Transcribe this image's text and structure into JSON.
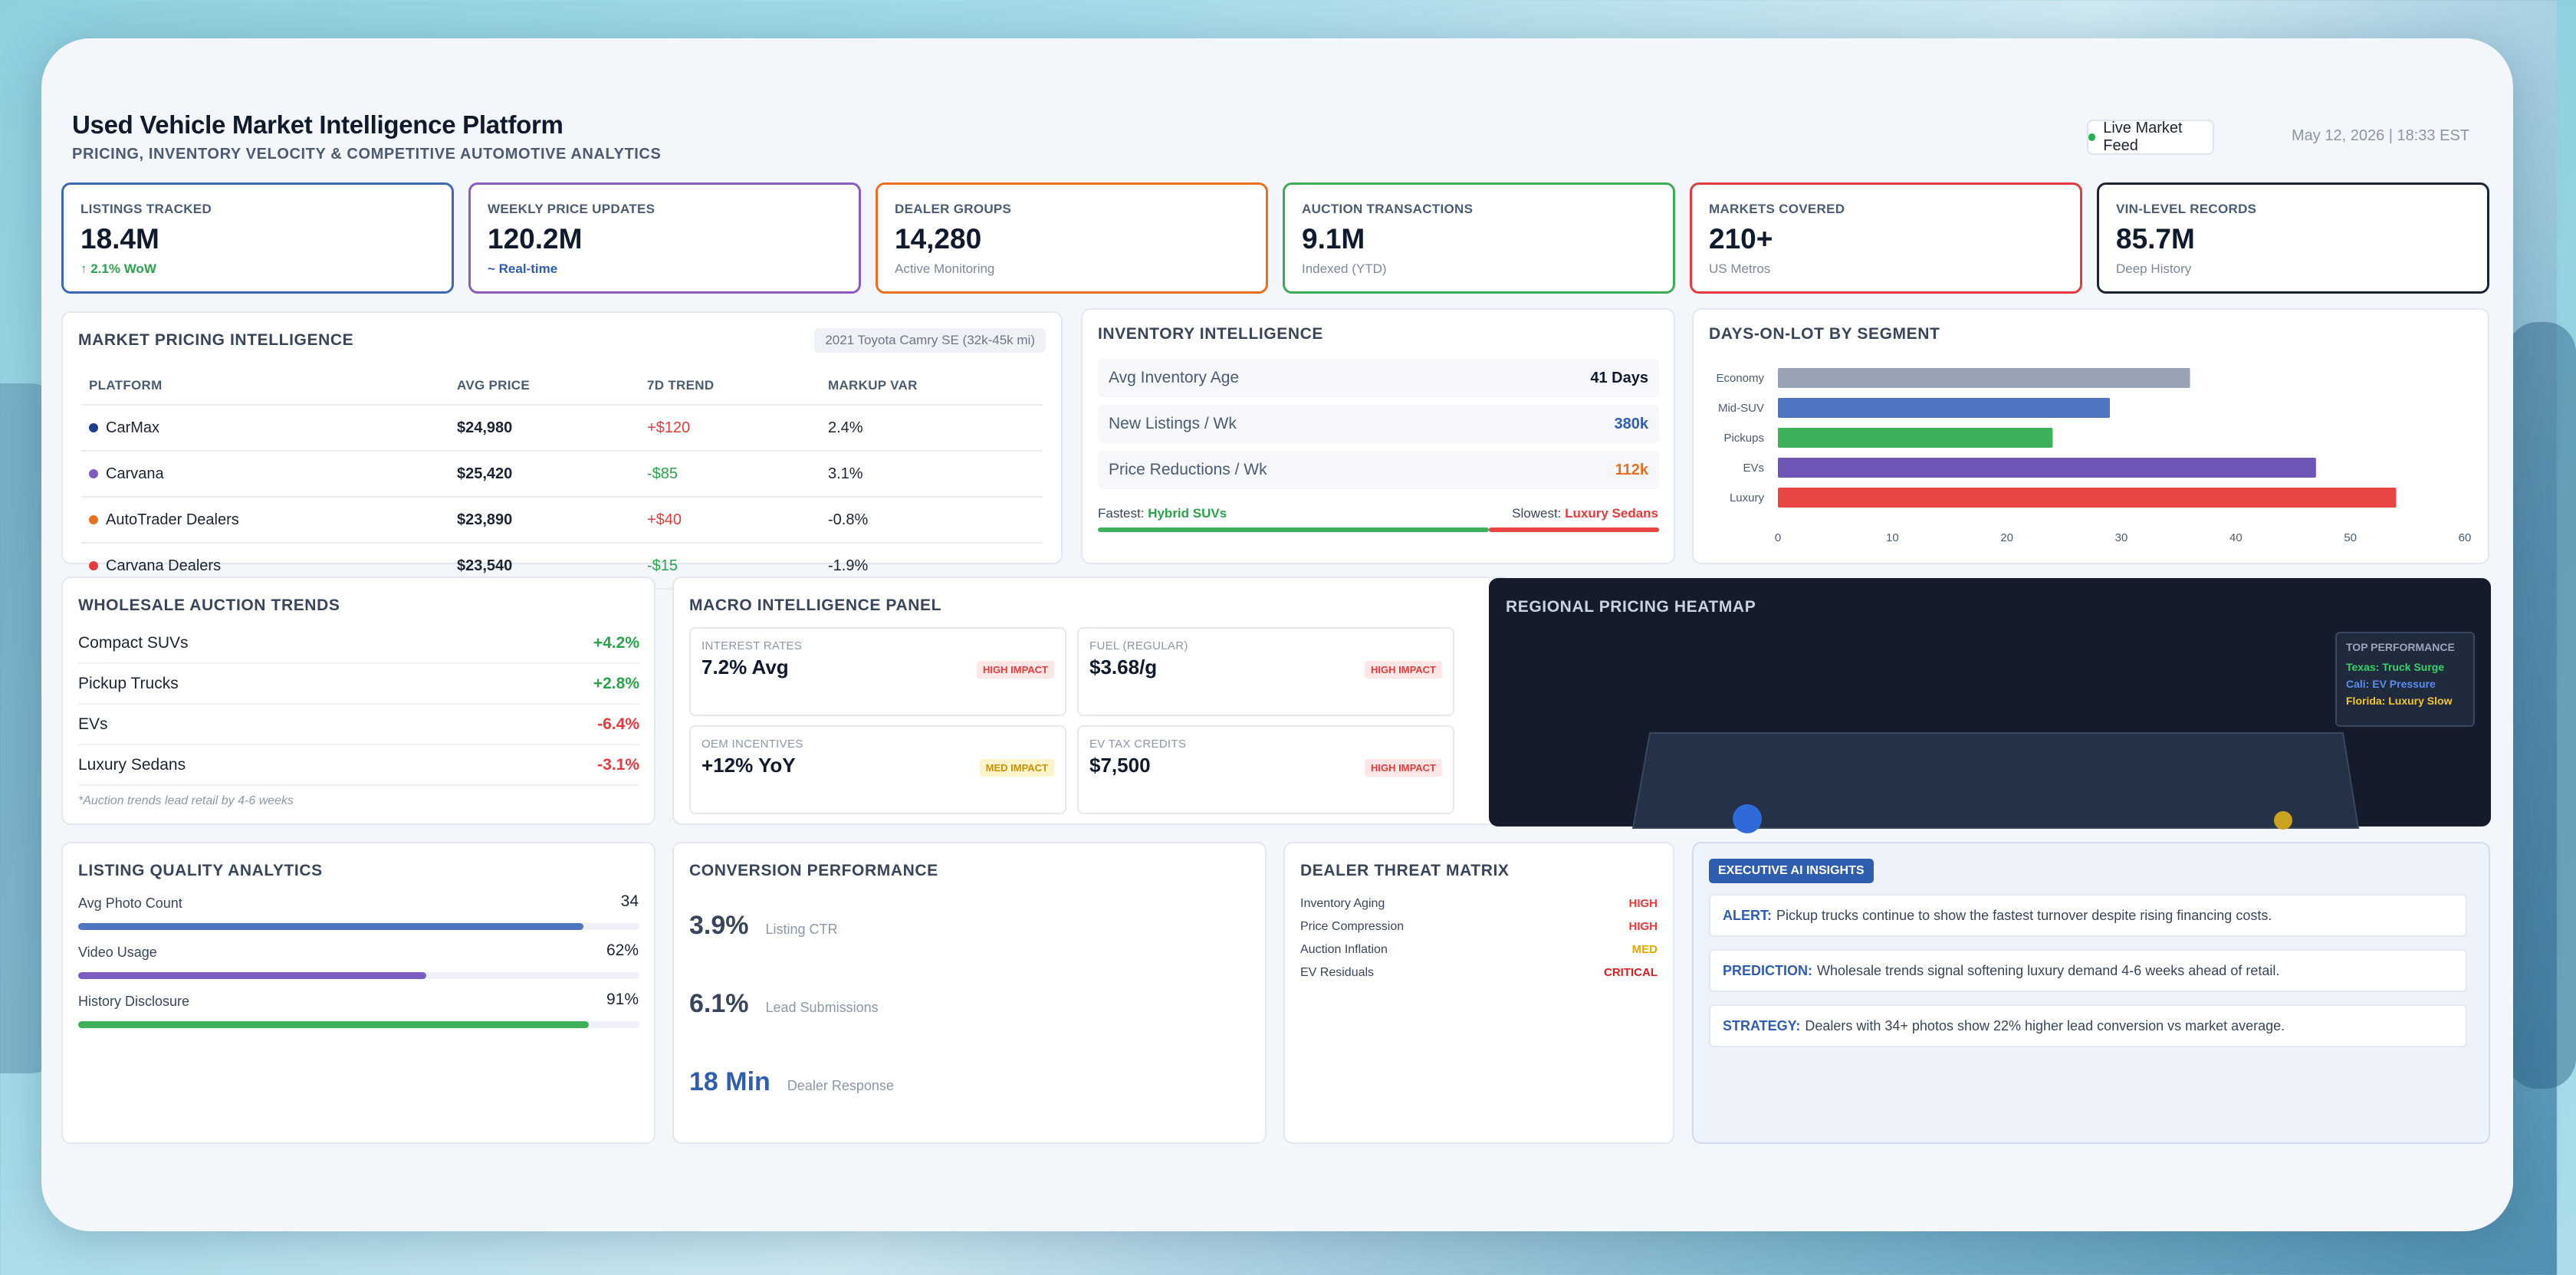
{
  "header": {
    "title": "Used Vehicle Market Intelligence Platform",
    "subtitle": "PRICING, INVENTORY VELOCITY & COMPETITIVE AUTOMOTIVE ANALYTICS",
    "live_label": "Live Market Feed",
    "timestamp": "May 12, 2026 | 18:33 EST"
  },
  "kpis": [
    {
      "label": "LISTINGS TRACKED",
      "value": "18.4M",
      "sub": "↑ 2.1% WoW",
      "border": "#3c68b5",
      "sub_color": "#2aa34a"
    },
    {
      "label": "WEEKLY PRICE UPDATES",
      "value": "120.2M",
      "sub": "~ Real-time",
      "border": "#8a5cc2",
      "sub_color": "#2f5db0"
    },
    {
      "label": "DEALER GROUPS",
      "value": "14,280",
      "sub": "Active Monitoring",
      "border": "#e8711f",
      "sub_color": "#7d8898"
    },
    {
      "label": "AUCTION TRANSACTIONS",
      "value": "9.1M",
      "sub": "Indexed (YTD)",
      "border": "#3bae55",
      "sub_color": "#7d8898"
    },
    {
      "label": "MARKETS COVERED",
      "value": "210+",
      "sub": "US Metros",
      "border": "#e23c3c",
      "sub_color": "#7d8898"
    },
    {
      "label": "VIN-LEVEL RECORDS",
      "value": "85.7M",
      "sub": "Deep History",
      "border": "#1b2433",
      "sub_color": "#7d8898"
    }
  ],
  "pricing": {
    "title": "MARKET PRICING INTELLIGENCE",
    "tag": "2021 Toyota Camry SE (32k-45k mi)",
    "headers": [
      "PLATFORM",
      "AVG PRICE",
      "7D TREND",
      "MARKUP VAR"
    ],
    "rows": [
      {
        "platform": "CarMax",
        "dot": "#1e3f8a",
        "price": "$24,980",
        "trend": "+$120",
        "trend_color": "#e23c3c",
        "markup": "2.4%"
      },
      {
        "platform": "Carvana",
        "dot": "#7d5bc0",
        "price": "$25,420",
        "trend": "-$85",
        "trend_color": "#2aa34a",
        "markup": "3.1%"
      },
      {
        "platform": "AutoTrader Dealers",
        "dot": "#e8711f",
        "price": "$23,890",
        "trend": "+$40",
        "trend_color": "#e23c3c",
        "markup": "-0.8%"
      },
      {
        "platform": "Carvana Dealers",
        "dot": "#e23c3c",
        "price": "$23,540",
        "trend": "-$15",
        "trend_color": "#2aa34a",
        "markup": "-1.9%"
      }
    ]
  },
  "inventory": {
    "title": "INVENTORY INTELLIGENCE",
    "rows": [
      {
        "label": "Avg Inventory Age",
        "value": "41 Days",
        "color": "#0f1b2d"
      },
      {
        "label": "New Listings / Wk",
        "value": "380k",
        "color": "#2f5db0"
      },
      {
        "label": "Price Reductions / Wk",
        "value": "112k",
        "color": "#e8711f"
      }
    ],
    "fastest_label": "Fastest:",
    "fastest_value": "Hybrid SUVs",
    "slowest_label": "Slowest:",
    "slowest_value": "Luxury Sedans"
  },
  "chart_data": {
    "type": "bar",
    "orientation": "horizontal",
    "title": "DAYS-ON-LOT BY SEGMENT",
    "categories": [
      "Economy",
      "Mid-SUV",
      "Pickups",
      "EVs",
      "Luxury"
    ],
    "values": [
      36,
      29,
      24,
      47,
      54
    ],
    "colors": [
      "#98a3b4",
      "#4e74c2",
      "#3fb05a",
      "#6f55b5",
      "#e84545"
    ],
    "xlim": [
      0,
      60
    ],
    "xticks": [
      0,
      10,
      20,
      30,
      40,
      50,
      60
    ],
    "grid": false
  },
  "wholesale": {
    "title": "WHOLESALE AUCTION TRENDS",
    "rows": [
      {
        "label": "Compact SUVs",
        "value": "+4.2%",
        "color": "#2aa34a"
      },
      {
        "label": "Pickup Trucks",
        "value": "+2.8%",
        "color": "#2aa34a"
      },
      {
        "label": "EVs",
        "value": "-6.4%",
        "color": "#e23c3c"
      },
      {
        "label": "Luxury Sedans",
        "value": "-3.1%",
        "color": "#e23c3c"
      }
    ],
    "note": "*Auction trends lead retail by 4-6 weeks"
  },
  "macro": {
    "title": "MACRO INTELLIGENCE PANEL",
    "items": [
      {
        "label": "INTEREST RATES",
        "value": "7.2% Avg",
        "badge": "HIGH IMPACT",
        "level": "high"
      },
      {
        "label": "FUEL (REGULAR)",
        "value": "$3.68/g",
        "badge": "HIGH IMPACT",
        "level": "high"
      },
      {
        "label": "OEM INCENTIVES",
        "value": "+12% YoY",
        "badge": "MED IMPACT",
        "level": "med"
      },
      {
        "label": "EV TAX CREDITS",
        "value": "$7,500",
        "badge": "HIGH IMPACT",
        "level": "high"
      }
    ]
  },
  "heatmap": {
    "title": "REGIONAL PRICING HEATMAP",
    "legend_title": "TOP PERFORMANCE",
    "legend": [
      {
        "text": "Texas: Truck Surge",
        "color": "#3ad06a"
      },
      {
        "text": "Cali: EV Pressure",
        "color": "#5b8cf0"
      },
      {
        "text": "Florida: Luxury Slow",
        "color": "#f5c431"
      }
    ]
  },
  "listing_quality": {
    "title": "LISTING QUALITY ANALYTICS",
    "rows": [
      {
        "label": "Avg Photo Count",
        "value": "34",
        "fill": 0.9,
        "color": "#4e74c2"
      },
      {
        "label": "Video Usage",
        "value": "62%",
        "fill": 0.62,
        "color": "#7a5cc2"
      },
      {
        "label": "History Disclosure",
        "value": "91%",
        "fill": 0.91,
        "color": "#3fb05a"
      }
    ]
  },
  "conversion": {
    "title": "CONVERSION PERFORMANCE",
    "rows": [
      {
        "value": "3.9%",
        "caption": "Listing CTR",
        "color": "#38455a"
      },
      {
        "value": "6.1%",
        "caption": "Lead Submissions",
        "color": "#38455a"
      },
      {
        "value": "18 Min",
        "caption": "Dealer Response",
        "color": "#2f5db0"
      }
    ]
  },
  "threat": {
    "title": "DEALER THREAT MATRIX",
    "rows": [
      {
        "label": "Inventory Aging",
        "level": "HIGH",
        "color": "#e23c3c"
      },
      {
        "label": "Price Compression",
        "level": "HIGH",
        "color": "#e23c3c"
      },
      {
        "label": "Auction Inflation",
        "level": "MED",
        "color": "#e0a800"
      },
      {
        "label": "EV Residuals",
        "level": "CRITICAL",
        "color": "#d91f1f"
      }
    ]
  },
  "insights": {
    "title": "EXECUTIVE AI INSIGHTS",
    "rows": [
      {
        "key": "ALERT:",
        "text": "Pickup trucks continue to show the fastest turnover despite rising financing costs."
      },
      {
        "key": "PREDICTION:",
        "text": "Wholesale trends signal softening luxury demand 4-6 weeks ahead of retail."
      },
      {
        "key": "STRATEGY:",
        "text": "Dealers with 34+ photos show 22% higher lead conversion vs market average."
      }
    ]
  }
}
